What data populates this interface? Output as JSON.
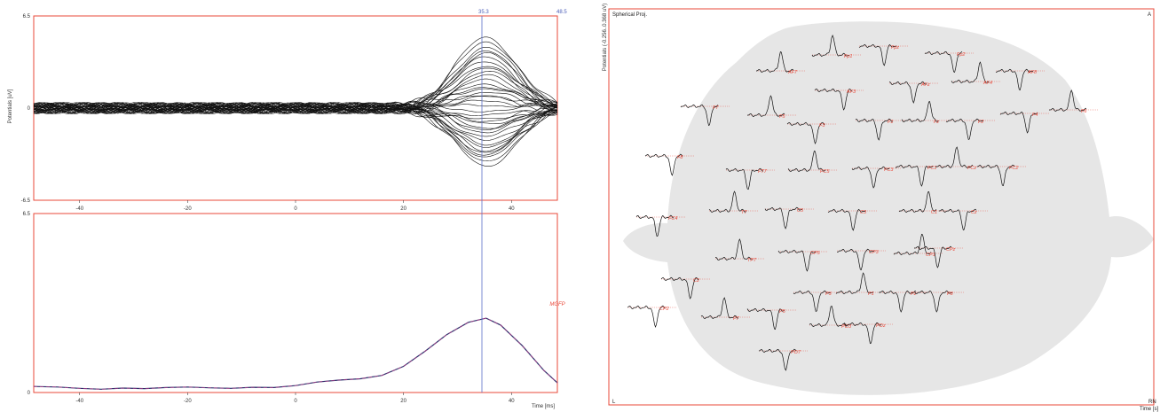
{
  "colors": {
    "frame": "#e8493a",
    "cursor": "#5a6fc8",
    "trace": "#111111",
    "gfp_line": "#c23b8a",
    "head": "#e6e6e6",
    "electrode_label": "#e8493a",
    "cursor_label": "#4c5fb8"
  },
  "cursor": {
    "time_label": "35.3",
    "end_label": "48.5"
  },
  "chart_data": [
    {
      "name": "butterfly",
      "type": "line",
      "ylabel": "Potentials [uV]",
      "ylim": [
        -6.5,
        6.5
      ],
      "ytick_labels": [
        "6.5",
        "0",
        "-6.5"
      ],
      "xlim": [
        -48.5,
        48.5
      ],
      "xticks": [
        -40,
        -20,
        0,
        20,
        40
      ],
      "xtick_labels": [
        "-40",
        "-20",
        "0",
        "20",
        "40"
      ],
      "cursor_x": 35.3,
      "peak_time": 35.3,
      "peak_width": 8,
      "series_peak_amplitudes": [
        5.0,
        4.7,
        4.3,
        4.0,
        3.6,
        3.3,
        3.0,
        2.6,
        2.3,
        2.0,
        1.7,
        1.4,
        1.1,
        0.8,
        0.5,
        0.2,
        -0.2,
        -0.5,
        -0.8,
        -1.1,
        -1.4,
        -1.7,
        -2.0,
        -2.3,
        -2.6,
        -3.0,
        -3.3,
        -3.5,
        -3.8,
        -4.1,
        1.5,
        -1.5,
        2.8,
        -2.8,
        0.9,
        -0.9,
        3.9,
        -3.2
      ]
    },
    {
      "name": "gfp",
      "type": "line",
      "ylim": [
        0,
        6.5
      ],
      "ytick_labels": [
        "6.5",
        "0"
      ],
      "xlim": [
        -48.5,
        48.5
      ],
      "xticks": [
        -40,
        -20,
        0,
        20,
        40
      ],
      "xtick_labels": [
        "-40",
        "-20",
        "0",
        "20",
        "40"
      ],
      "xlabel": "Time [ms]",
      "series_label": "MGFP",
      "x": [
        -48.5,
        -44,
        -40,
        -36,
        -32,
        -28,
        -24,
        -20,
        -16,
        -12,
        -8,
        -4,
        0,
        4,
        8,
        12,
        16,
        20,
        24,
        28,
        32,
        35.3,
        38,
        42,
        46,
        48.5
      ],
      "values": [
        0.22,
        0.2,
        0.15,
        0.12,
        0.16,
        0.14,
        0.18,
        0.2,
        0.17,
        0.15,
        0.19,
        0.18,
        0.25,
        0.38,
        0.45,
        0.5,
        0.62,
        0.95,
        1.5,
        2.1,
        2.55,
        2.7,
        2.45,
        1.7,
        0.8,
        0.35
      ]
    },
    {
      "name": "spherical_projection",
      "type": "line",
      "title": "Spherical Proj.",
      "ylabel": "Potentials (-0.256..0.368 uV)",
      "corner_labels": {
        "bottom_left": "L",
        "bottom_right": "RN",
        "bottom_right_sub": "Time [s]",
        "top_right": "A"
      },
      "electrodes": [
        "Fp1",
        "Fpz",
        "Fp2",
        "AF7",
        "AF3",
        "AFz",
        "AF4",
        "AF8",
        "F7",
        "F5",
        "F3",
        "F1",
        "Fz",
        "F2",
        "F4",
        "F6",
        "F8",
        "FT7",
        "FC5",
        "FC3",
        "FC1",
        "FCz",
        "FC2",
        "FC4",
        "T7",
        "C5",
        "C3",
        "C1",
        "Cz",
        "C2",
        "TP7",
        "CP5",
        "CP3",
        "CP1",
        "CPz",
        "CP2",
        "P7",
        "P5",
        "P3",
        "P1",
        "Pz",
        "PO7",
        "PO3",
        "POz",
        "P8"
      ]
    }
  ]
}
